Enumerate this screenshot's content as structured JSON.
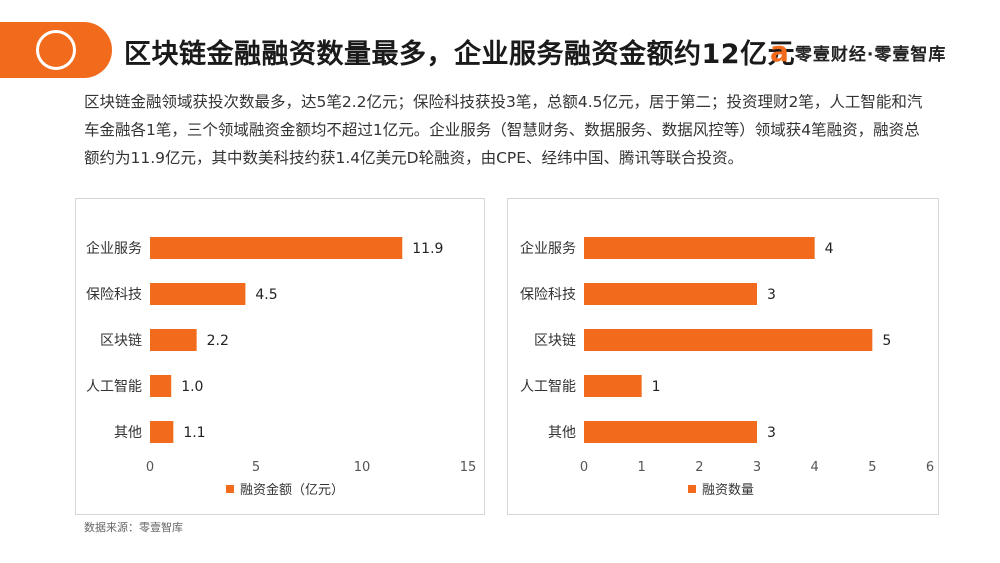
{
  "header": {
    "title": "区块链金融融资数量最多，企业服务融资金额约12亿元",
    "brand_logo": "a",
    "brand_name": "零壹财经·零壹智库"
  },
  "intro": "区块链金融领域获投次数最多，达5笔2.2亿元；保险科技获投3笔，总额4.5亿元，居于第二；投资理财2笔，人工智能和汽车金融各1笔，三个领域融资金额均不超过1亿元。企业服务（智慧财务、数据服务、数据风控等）领域获4笔融资，融资总额约为11.9亿元，其中数美科技约获1.4亿美元D轮融资，由CPE、经纬中国、腾讯等联合投资。",
  "source": "数据来源：零壹智库",
  "colors": {
    "accent": "#f26a1b",
    "bar": "#f26a1b"
  },
  "chart_data": [
    {
      "type": "bar",
      "orientation": "horizontal",
      "categories": [
        "企业服务",
        "保险科技",
        "区块链",
        "人工智能",
        "其他"
      ],
      "series": [
        {
          "name": "融资金额（亿元）",
          "values": [
            11.9,
            4.5,
            2.2,
            1.0,
            1.1
          ]
        }
      ],
      "data_labels": [
        "11.9",
        "4.5",
        "2.2",
        "1.0",
        "1.1"
      ],
      "xlim": [
        0,
        15
      ],
      "xticks": [
        0,
        5,
        10,
        15
      ],
      "legend": "bottom",
      "grid": false
    },
    {
      "type": "bar",
      "orientation": "horizontal",
      "categories": [
        "企业服务",
        "保险科技",
        "区块链",
        "人工智能",
        "其他"
      ],
      "series": [
        {
          "name": "融资数量",
          "values": [
            4,
            3,
            5,
            1,
            3
          ]
        }
      ],
      "data_labels": [
        "4",
        "3",
        "5",
        "1",
        "3"
      ],
      "xlim": [
        0,
        6
      ],
      "xticks": [
        0,
        1,
        2,
        3,
        4,
        5,
        6
      ],
      "legend": "bottom",
      "grid": false
    }
  ]
}
